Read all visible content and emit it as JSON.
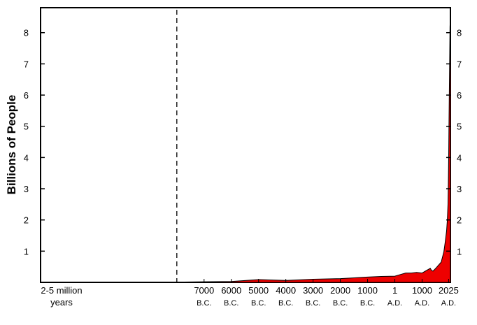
{
  "chart_data": {
    "type": "area",
    "ylabel": "Billions of People",
    "ylim": [
      0,
      8.5
    ],
    "yticks": [
      1,
      2,
      3,
      4,
      5,
      6,
      7,
      8
    ],
    "xticks": [
      {
        "label": "2-5 million",
        "sub": "years",
        "year": -12000
      },
      {
        "label": "7000",
        "sub": "B.C.",
        "year": -7000
      },
      {
        "label": "6000",
        "sub": "B.C.",
        "year": -6000
      },
      {
        "label": "5000",
        "sub": "B.C.",
        "year": -5000
      },
      {
        "label": "4000",
        "sub": "B.C.",
        "year": -4000
      },
      {
        "label": "3000",
        "sub": "B.C.",
        "year": -3000
      },
      {
        "label": "2000",
        "sub": "B.C.",
        "year": -2000
      },
      {
        "label": "1000",
        "sub": "B.C.",
        "year": -1000
      },
      {
        "label": "1",
        "sub": "A.D.",
        "year": 1
      },
      {
        "label": "1000",
        "sub": "A.D.",
        "year": 1000
      },
      {
        "label": "2025",
        "sub": "A.D.",
        "year": 2025
      }
    ],
    "axis_break_year": -8000,
    "series": [
      {
        "color": "#ee0000",
        "points": [
          [
            -13000,
            0.01
          ],
          [
            -8000,
            0.01
          ],
          [
            -7000,
            0.02
          ],
          [
            -6000,
            0.03
          ],
          [
            -5000,
            0.09
          ],
          [
            -4000,
            0.06
          ],
          [
            -3000,
            0.1
          ],
          [
            -2000,
            0.12
          ],
          [
            -1000,
            0.17
          ],
          [
            -500,
            0.19
          ],
          [
            1,
            0.2
          ],
          [
            200,
            0.25
          ],
          [
            400,
            0.3
          ],
          [
            600,
            0.3
          ],
          [
            800,
            0.32
          ],
          [
            1000,
            0.3
          ],
          [
            1200,
            0.4
          ],
          [
            1300,
            0.45
          ],
          [
            1350,
            0.38
          ],
          [
            1400,
            0.36
          ],
          [
            1500,
            0.45
          ],
          [
            1600,
            0.55
          ],
          [
            1700,
            0.65
          ],
          [
            1800,
            0.98
          ],
          [
            1850,
            1.3
          ],
          [
            1900,
            1.65
          ],
          [
            1927,
            2.0
          ],
          [
            1950,
            2.5
          ],
          [
            1960,
            3.0
          ],
          [
            1975,
            4.0
          ],
          [
            1987,
            5.0
          ],
          [
            2000,
            6.1
          ],
          [
            2010,
            6.9
          ],
          [
            2020,
            7.8
          ],
          [
            2025,
            8.2
          ],
          [
            2040,
            8.5
          ]
        ]
      }
    ]
  }
}
